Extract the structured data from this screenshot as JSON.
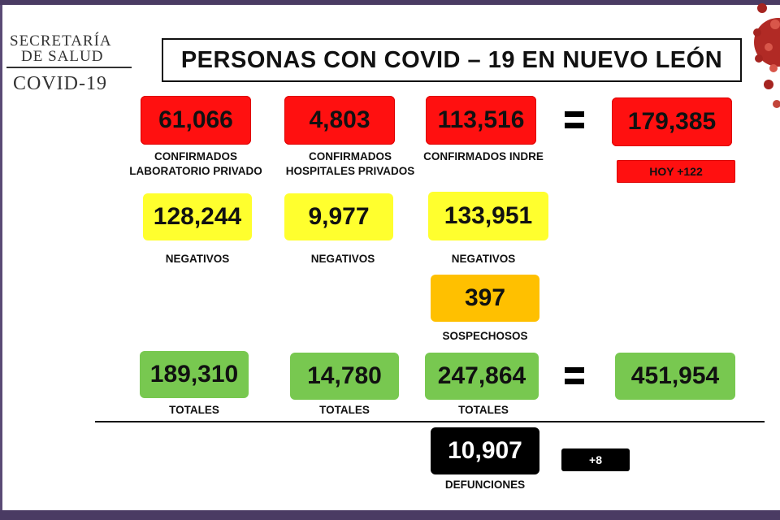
{
  "logo": {
    "line1": "SECRETARÍA",
    "line2": "DE SALUD",
    "line3": "COVID-19"
  },
  "title": "PERSONAS CON COVID – 19 EN NUEVO LEÓN",
  "confirmed": {
    "private_lab": {
      "value": "61,066",
      "label_line1": "CONFIRMADOS",
      "label_line2": "LABORATORIO PRIVADO"
    },
    "private_hospitals": {
      "value": "4,803",
      "label_line1": "CONFIRMADOS",
      "label_line2": "HOSPITALES PRIVADOS"
    },
    "indre": {
      "value": "113,516",
      "label": "CONFIRMADOS INDRE"
    },
    "total": {
      "value": "179,385",
      "today": "HOY +122"
    }
  },
  "negatives": {
    "private_lab": {
      "value": "128,244",
      "label": "NEGATIVOS"
    },
    "private_hospitals": {
      "value": "9,977",
      "label": "NEGATIVOS"
    },
    "indre": {
      "value": "133,951",
      "label": "NEGATIVOS"
    }
  },
  "suspected": {
    "value": "397",
    "label": "SOSPECHOSOS"
  },
  "totals": {
    "private_lab": {
      "value": "189,310",
      "label": "TOTALES"
    },
    "private_hospitals": {
      "value": "14,780",
      "label": "TOTALES"
    },
    "indre": {
      "value": "247,864",
      "label": "TOTALES"
    },
    "grand_total": {
      "value": "451,954"
    }
  },
  "deaths": {
    "value": "10,907",
    "label": "DEFUNCIONES",
    "today": "+8"
  },
  "colors": {
    "confirmed": "#ff1010",
    "negatives": "#ffff2e",
    "suspected": "#ffc000",
    "totals": "#78c850",
    "deaths": "#000000",
    "frame": "#4a3b63"
  }
}
